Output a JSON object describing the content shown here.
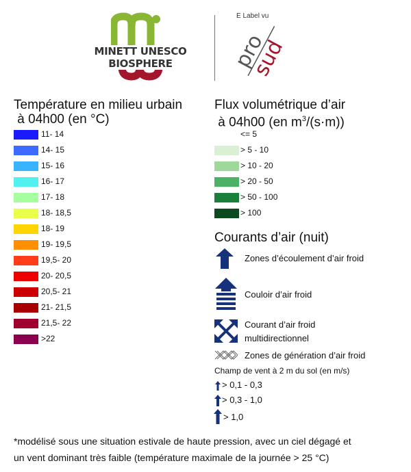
{
  "header": {
    "minett_text": "MINETT UNESCO BIOSPHERE",
    "label_tag": "E Label vu",
    "prosud_top": "pro",
    "prosud_bottom": "sud"
  },
  "temperature": {
    "title_line1": "Température en milieu urbain",
    "title_line2": " à 04h00 (en °C)",
    "items": [
      {
        "label": "11- 14",
        "color": "#1a1aff"
      },
      {
        "label": "14- 15",
        "color": "#3d6bff"
      },
      {
        "label": "15- 16",
        "color": "#38b4ff"
      },
      {
        "label": "16- 17",
        "color": "#52f0ef"
      },
      {
        "label": "17- 18",
        "color": "#a5ff9e"
      },
      {
        "label": "18- 18,5",
        "color": "#eaff4a"
      },
      {
        "label": "18- 19",
        "color": "#ffd500"
      },
      {
        "label": "19- 19,5",
        "color": "#ff8f00"
      },
      {
        "label": "19,5- 20",
        "color": "#ff3d1a"
      },
      {
        "label": "20- 20,5",
        "color": "#ee0000"
      },
      {
        "label": "20,5- 21",
        "color": "#cc0000"
      },
      {
        "label": "21- 21,5",
        "color": "#a80000"
      },
      {
        "label": "21,5- 22",
        "color": "#a0002e"
      },
      {
        "label": ">22",
        "color": "#8c0050"
      }
    ]
  },
  "flux": {
    "title_line1": "Flux volumétrique d’air",
    "title_line2_pre": " à 04h00 (en m",
    "title_line2_sup": "3",
    "title_line2_post": "/(s·m))",
    "items": [
      {
        "label": "<= 5",
        "color": "#ffffff"
      },
      {
        "label": "> 5 - 10",
        "color": "#d9f0d4"
      },
      {
        "label": "> 10 - 20",
        "color": "#9fd99a"
      },
      {
        "label": "> 20 - 50",
        "color": "#4ab165"
      },
      {
        "label": "> 50 - 100",
        "color": "#1a7f3a"
      },
      {
        "label": "> 100",
        "color": "#0a4a1e"
      }
    ]
  },
  "courants": {
    "title": "Courants d’air (nuit)",
    "arrow_color": "#16327a",
    "items": {
      "ecoulement": "Zones d’écoulement d’air froid",
      "couloir": "Couloir d’air froid",
      "multi_line1": "Courant d’air froid",
      "multi_line2": "multidirectionnel",
      "generation": "Zones de génération d’air froid"
    }
  },
  "wind": {
    "title": "Champ de vent à 2 m du sol (en m/s)",
    "items": [
      "> 0,1 - 0,3",
      "> 0,3 - 1,0",
      "> 1,0"
    ]
  },
  "footnote": {
    "line1": "*modélisé sous une situation estivale de haute pression, avec un ciel dégagé et",
    "line2": "un vent dominant très faible (température maximale de la journée > 25 °C)"
  }
}
